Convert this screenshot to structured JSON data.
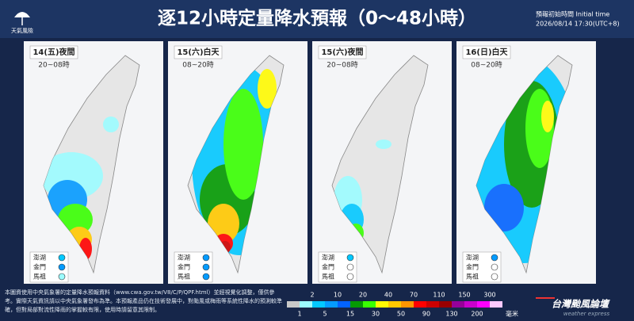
{
  "logo": "天氣風險",
  "title": "逐12小時定量降水預報（0～48小時）",
  "init": {
    "label": "預報初始時間 Initial time",
    "time": "2026/08/14  17:30(UTC+8)"
  },
  "panels": [
    {
      "day": "14(五)夜間",
      "hours": "20~08時"
    },
    {
      "day": "15(六)白天",
      "hours": "08~20時"
    },
    {
      "day": "15(六)夜間",
      "hours": "20~08時"
    },
    {
      "day": "16(日)白天",
      "hours": "08~20時"
    }
  ],
  "islands": [
    "澎湖",
    "金門",
    "馬祖"
  ],
  "note": "本圖資使用中央氣象署的定量降水預報資料（www.cwa.gov.tw/V8/C/P/QPF.html）並經視覺化調整，僅供參考。實際天氣資訊請以中央氣象署發布為準。本預報產品仍在技術發展中，對颱風或梅雨等系統性降水的預測較準確，但對局部對流性降雨的掌握較有限，使用時請留意其限制。",
  "legend": {
    "colors": [
      "#c8c8c8",
      "#9cfcff",
      "#03c8ff",
      "#059bff",
      "#0363ff",
      "#059902",
      "#39ff03",
      "#fffb03",
      "#ffc800",
      "#ff9500",
      "#ff0000",
      "#cc0000",
      "#990000",
      "#960099",
      "#c900cc",
      "#fb00ff",
      "#fdc9ff"
    ],
    "upper_labels": [
      2,
      10,
      20,
      40,
      70,
      110,
      150,
      300
    ],
    "lower_labels": [
      1,
      5,
      15,
      30,
      50,
      90,
      130,
      200
    ],
    "unit": "毫米"
  },
  "brand": {
    "name": "台灣颱風論壇",
    "tagline": "weather express"
  }
}
